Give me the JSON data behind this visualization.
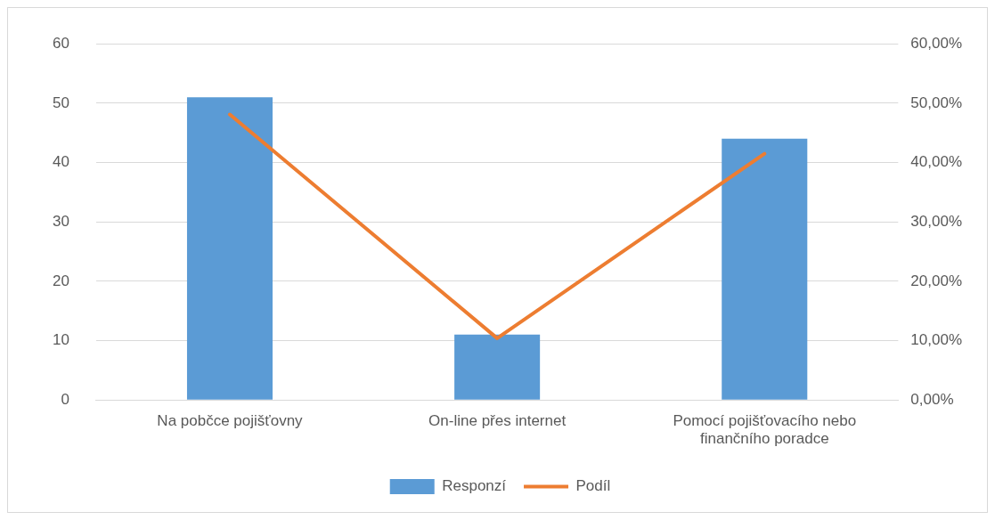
{
  "chart_data": {
    "type": "bar",
    "categories": [
      "Na pobčce pojišťovny",
      "On-line přes internet",
      "Pomocí pojišťovacího nebo finančního poradce"
    ],
    "series": [
      {
        "name": "Responzí",
        "color": "#5b9bd5",
        "values": [
          51,
          11,
          44
        ]
      },
      {
        "name": "Podíl",
        "type": "line",
        "axis": "y2",
        "color": "#ed7d31",
        "values": [
          48.1,
          10.4,
          41.5
        ]
      }
    ],
    "ylim": [
      0,
      60
    ],
    "yticks": [
      0,
      10,
      20,
      30,
      40,
      50,
      60
    ],
    "y2lim": [
      0,
      60
    ],
    "y2ticks": [
      {
        "value": 0,
        "label": "0,00%"
      },
      {
        "value": 10,
        "label": "10,00%"
      },
      {
        "value": 20,
        "label": "20,00%"
      },
      {
        "value": 30,
        "label": "30,00%"
      },
      {
        "value": 40,
        "label": "40,00%"
      },
      {
        "value": 50,
        "label": "50,00%"
      },
      {
        "value": 60,
        "label": "60,00%"
      }
    ],
    "grid": "y",
    "legend": "bottom",
    "marker": "none",
    "line_style": "solid"
  }
}
